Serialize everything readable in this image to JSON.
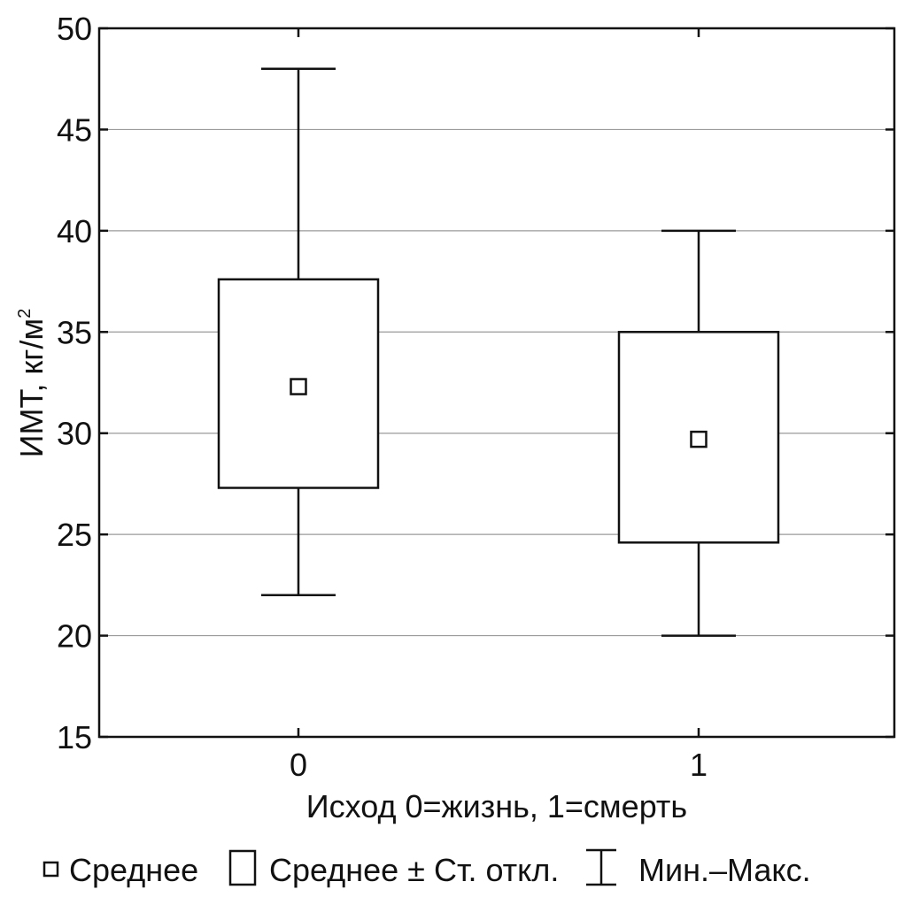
{
  "chart_data": {
    "type": "box",
    "xlabel": "Исход 0=жизнь, 1=смерть",
    "ylabel": "ИМТ, кг/м",
    "ylabel_sup": "2",
    "ylim": [
      15,
      50
    ],
    "yticks": [
      "15",
      "20",
      "25",
      "30",
      "35",
      "40",
      "45",
      "50"
    ],
    "grid": true,
    "categories": [
      "0",
      "1"
    ],
    "groups": [
      {
        "category": "0",
        "mean": 32.3,
        "mean_minus_sd": 27.3,
        "mean_plus_sd": 37.6,
        "min": 22,
        "max": 48
      },
      {
        "category": "1",
        "mean": 29.7,
        "mean_minus_sd": 24.6,
        "mean_plus_sd": 35.0,
        "min": 20,
        "max": 40
      }
    ],
    "legend": {
      "placement": "bottom",
      "items": [
        {
          "icon": "small-square-icon",
          "label": "Среднее"
        },
        {
          "icon": "rectangle-icon",
          "label": "Среднее ± Ст. откл."
        },
        {
          "icon": "whisker-icon",
          "label": "Мин.–Макс."
        }
      ]
    }
  }
}
